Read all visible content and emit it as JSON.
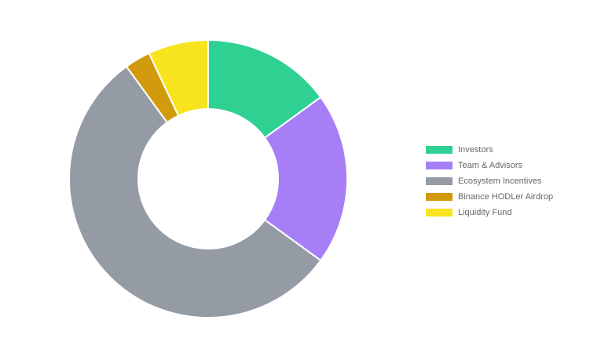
{
  "chart_data": {
    "type": "pie",
    "variant": "doughnut",
    "categories": [
      "Investors",
      "Team & Advisors",
      "Ecosystem Incentives",
      "Binance HODLer Airdrop",
      "Liquidity Fund"
    ],
    "values": [
      15,
      20,
      55,
      3,
      7
    ],
    "unit": "%",
    "colors": [
      "#2fd192",
      "#a67ff7",
      "#949ba5",
      "#d29b0e",
      "#f7e41f"
    ],
    "legend_position": "right",
    "start_angle": "top",
    "direction": "clockwise"
  }
}
